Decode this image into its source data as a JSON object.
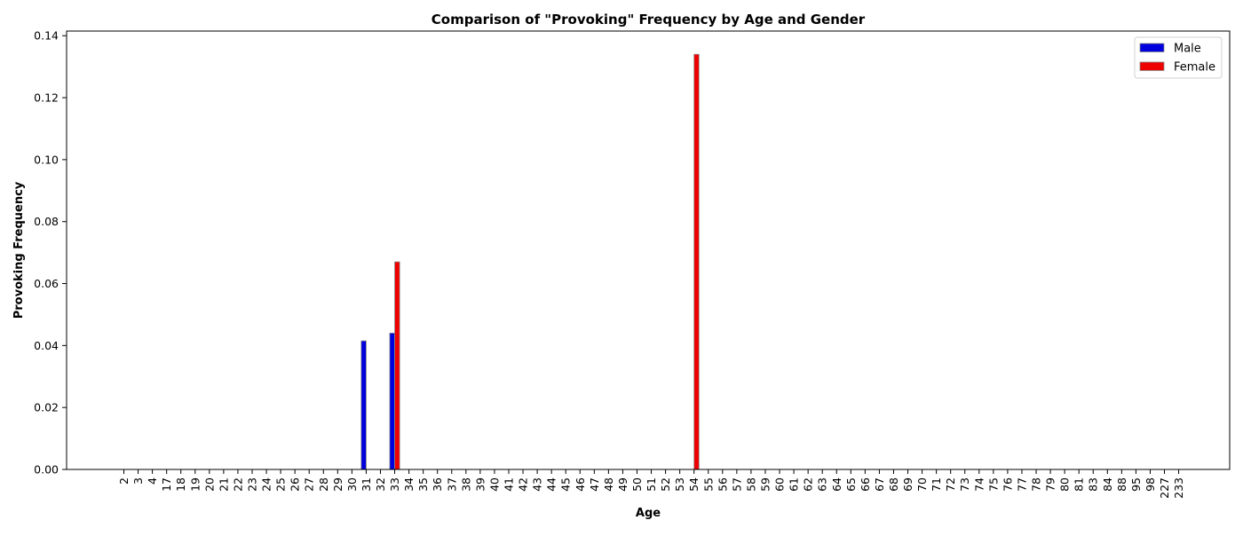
{
  "chart_data": {
    "type": "bar",
    "title": "Comparison of \"Provoking\" Frequency by Age and Gender",
    "xlabel": "Age",
    "ylabel": "Provoking Frequency",
    "categories": [
      "2",
      "3",
      "4",
      "17",
      "18",
      "19",
      "20",
      "21",
      "22",
      "23",
      "24",
      "25",
      "26",
      "27",
      "28",
      "29",
      "30",
      "31",
      "32",
      "33",
      "34",
      "35",
      "36",
      "37",
      "38",
      "39",
      "40",
      "41",
      "42",
      "43",
      "44",
      "45",
      "46",
      "47",
      "48",
      "49",
      "50",
      "51",
      "52",
      "53",
      "54",
      "55",
      "56",
      "57",
      "58",
      "59",
      "60",
      "61",
      "62",
      "63",
      "64",
      "65",
      "66",
      "67",
      "68",
      "69",
      "70",
      "71",
      "72",
      "73",
      "74",
      "75",
      "76",
      "77",
      "78",
      "79",
      "80",
      "81",
      "83",
      "84",
      "88",
      "95",
      "98",
      "227",
      "233"
    ],
    "series": [
      {
        "name": "Male",
        "color": "#0000dd",
        "values": [
          0,
          0,
          0,
          0,
          0,
          0,
          0,
          0,
          0,
          0,
          0,
          0,
          0,
          0,
          0,
          0,
          0,
          0.0415,
          0,
          0.044,
          0,
          0,
          0,
          0,
          0,
          0,
          0,
          0,
          0,
          0,
          0,
          0,
          0,
          0,
          0,
          0,
          0,
          0,
          0,
          0,
          0,
          0,
          0,
          0,
          0,
          0,
          0,
          0,
          0,
          0,
          0,
          0,
          0,
          0,
          0,
          0,
          0,
          0,
          0,
          0,
          0,
          0,
          0,
          0,
          0,
          0,
          0,
          0,
          0,
          0,
          0,
          0,
          0,
          0,
          0
        ]
      },
      {
        "name": "Female",
        "color": "#ee0000",
        "values": [
          0,
          0,
          0,
          0,
          0,
          0,
          0,
          0,
          0,
          0,
          0,
          0,
          0,
          0,
          0,
          0,
          0,
          0,
          0,
          0.067,
          0,
          0,
          0,
          0,
          0,
          0,
          0,
          0,
          0,
          0,
          0,
          0,
          0,
          0,
          0,
          0,
          0,
          0,
          0,
          0,
          0.134,
          0,
          0,
          0,
          0,
          0,
          0,
          0,
          0,
          0,
          0,
          0,
          0,
          0,
          0,
          0,
          0,
          0,
          0,
          0,
          0,
          0,
          0,
          0,
          0,
          0,
          0,
          0,
          0,
          0,
          0,
          0,
          0,
          0,
          0
        ]
      }
    ],
    "ylim": [
      0,
      0.1415
    ],
    "yticks": [
      "0.00",
      "0.02",
      "0.04",
      "0.06",
      "0.08",
      "0.10",
      "0.12",
      "0.14"
    ],
    "grid": false,
    "legend_position": "top-right"
  }
}
